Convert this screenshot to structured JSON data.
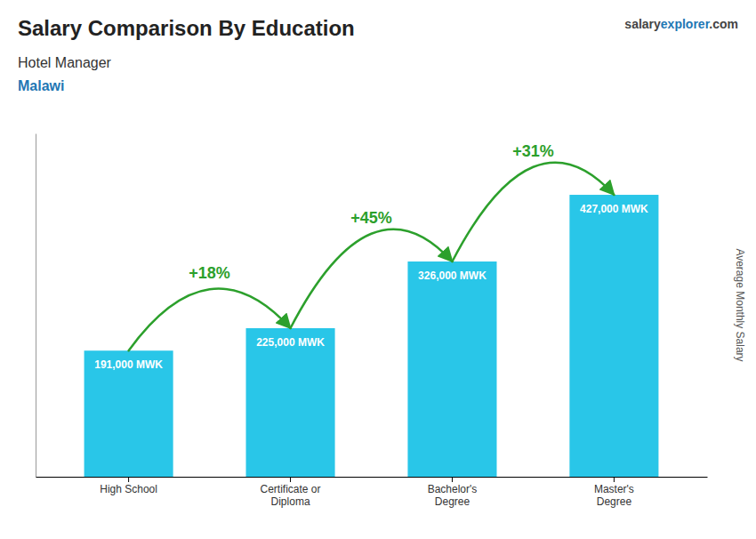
{
  "chart_data": {
    "type": "bar",
    "title": "Salary Comparison By Education",
    "subtitle": [
      "Hotel Manager",
      "Malawi"
    ],
    "ylabel": "Average Monthly Salary",
    "brand": [
      "salary",
      "explorer",
      ".com"
    ],
    "categories": [
      "High School",
      "Certificate or\nDiploma",
      "Bachelor's\nDegree",
      "Master's\nDegree"
    ],
    "values": [
      191000,
      225000,
      326000,
      427000
    ],
    "value_labels": [
      "191,000 MWK",
      "225,000 MWK",
      "326,000 MWK",
      "427,000 MWK"
    ],
    "data_labels": true,
    "annotations": [
      "+18%",
      "+45%",
      "+31%"
    ],
    "color": "#29c6e8",
    "ylim": [
      0,
      520000
    ],
    "tick_labels": "x"
  }
}
